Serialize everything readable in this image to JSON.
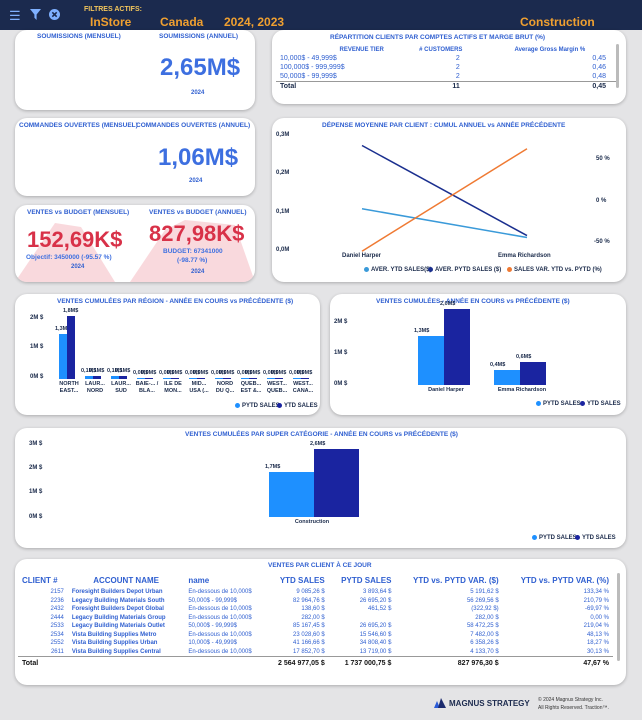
{
  "header": {
    "filters_label": "FILTRES ACTIFS:",
    "filters": [
      "InStore",
      "Canada",
      "2024, 2023",
      "Construction"
    ]
  },
  "soumissions": {
    "title_m": "SOUMISSIONS (MENSUEL)",
    "title_a": "SOUMISSIONS (ANNUEL)",
    "value": "2,65M$",
    "year": "2024"
  },
  "commandes": {
    "title_m": "COMMANDES OUVERTES (MENSUEL)",
    "title_a": "COMMANDES OUVERTES (ANNUEL)",
    "value": "1,06M$",
    "year": "2024"
  },
  "ventes_budget": {
    "title_m": "VENTES vs BUDGET (MENSUEL)",
    "title_a": "VENTES vs BUDGET (ANNUEL)",
    "value_m": "152,69K$",
    "value_a": "827,98K$",
    "objectif": "Objectif: 3450000 (-95.57 %)",
    "budget": "BUDGET: 67341000",
    "budget_pct": "(-98.77 %)",
    "year_m": "2024",
    "year_a": "2024"
  },
  "repartition": {
    "title": "RÉPARTITION CLIENTS PAR COMPTES ACTIFS ET MARGE BRUT (%)",
    "headers": [
      "REVENUE TIER",
      "# CUSTOMERS",
      "Average Gross Margin %"
    ],
    "rows": [
      [
        "10,000$ - 49,999$",
        "2",
        "0,45"
      ],
      [
        "100,000$ - 999,999$",
        "2",
        "0,46"
      ],
      [
        "50,000$ - 99,999$",
        "2",
        "0,48"
      ]
    ],
    "total": [
      "Total",
      "11",
      "0,45"
    ]
  },
  "depense": {
    "title": "DÉPENSE MOYENNE PAR CLIENT : CUMUL ANNUEL vs ANNÉE PRÉCÉDENTE",
    "y_left": [
      "0,3M",
      "0,2M",
      "0,1M",
      "0,0M"
    ],
    "y_right": [
      "50 %",
      "0 %",
      "-50 %"
    ],
    "x": [
      "Daniel Harper",
      "Emma Richardson"
    ],
    "legend": [
      "AVER. YTD SALES($)",
      "AVER. PYTD SALES ($)",
      "SALES VAR. YTD vs. PYTD (%)"
    ],
    "colors": [
      "#3a9ad9",
      "#1a2f8f",
      "#ef7a33"
    ]
  },
  "region": {
    "title": "VENTES CUMULÉES PAR RÉGION - ANNÉE EN COURS vs PRÉCÉDENTE ($)",
    "y": [
      "2M $",
      "1M $",
      "0M $"
    ],
    "legend": [
      "PYTD SALES",
      "YTD SALES"
    ]
  },
  "cumulees": {
    "title": "VENTES CUMULÉES - ANNÉE EN COURS vs PRÉCÉDENTE ($)",
    "y": [
      "2M $",
      "1M $",
      "0M $"
    ],
    "legend": [
      "PYTD SALES",
      "YTD SALES"
    ]
  },
  "categorie": {
    "title": "VENTES CUMULÉES PAR SUPER CATÉGORIE - ANNÉE EN COURS vs PRÉCÉDENTE ($)",
    "y": [
      "3M $",
      "2M $",
      "1M $",
      "0M $"
    ],
    "legend": [
      "PYTD SALES",
      "YTD SALES"
    ]
  },
  "chart_data": [
    {
      "type": "line",
      "title": "DÉPENSE MOYENNE PAR CLIENT : CUMUL ANNUEL vs ANNÉE PRÉCÉDENTE",
      "x": [
        "Daniel Harper",
        "Emma Richardson"
      ],
      "series": [
        {
          "name": "AVER. YTD SALES($)",
          "values": [
            0.105,
            0.03
          ],
          "axis": "left"
        },
        {
          "name": "AVER. PYTD SALES ($)",
          "values": [
            0.27,
            0.035
          ],
          "axis": "left"
        },
        {
          "name": "SALES VAR. YTD vs. PYTD (%)",
          "values": [
            -60,
            65
          ],
          "axis": "right"
        }
      ],
      "ylim": [
        0,
        0.3
      ]
    },
    {
      "type": "bar",
      "title": "VENTES CUMULÉES PAR RÉGION - ANNÉE EN COURS vs PRÉCÉDENTE ($)",
      "categories": [
        "NORTH EAST...",
        "LAUR... NORD",
        "LAUR... SUD",
        "BAIE-... / BLA...",
        "ILE DE MON...",
        "MID... USA (...",
        "NORD DU Q...",
        "QUEB... EST &...",
        "WEST... QUEB...",
        "WEST... CANA..."
      ],
      "series": [
        {
          "name": "PYTD SALES",
          "values": [
            1.3,
            0.1,
            0.1,
            0,
            0,
            0,
            0,
            0,
            0,
            0
          ]
        },
        {
          "name": "YTD SALES",
          "values": [
            1.8,
            0.1,
            0.1,
            0,
            0,
            0,
            0,
            0,
            0,
            0
          ]
        }
      ],
      "labels": [
        [
          "1,3M$",
          "1,8M$"
        ],
        [
          "0,1M$",
          "0,1M$"
        ],
        [
          "0,1M$",
          "0,1M$"
        ],
        [
          "0,0M$",
          "0,0M$"
        ],
        [
          "0,0M$",
          "0,0M$"
        ],
        [
          "0,0M$",
          "0,0M$"
        ],
        [
          "0,0M$",
          "0,0M$"
        ],
        [
          "0,0M$",
          "0,0M$"
        ],
        [
          "0,0M$",
          "0,0M$"
        ],
        [
          "0,0M$",
          "0,0M$"
        ]
      ],
      "ylim": [
        0,
        2
      ]
    },
    {
      "type": "bar",
      "title": "VENTES CUMULÉES - ANNÉE EN COURS vs PRÉCÉDENTE ($)",
      "categories": [
        "Daniel Harper",
        "Emma Richardson"
      ],
      "series": [
        {
          "name": "PYTD SALES",
          "values": [
            1.3,
            0.4
          ]
        },
        {
          "name": "YTD SALES",
          "values": [
            2.0,
            0.6
          ]
        }
      ],
      "labels": [
        [
          "1,3M$",
          "2,0M$"
        ],
        [
          "0,4M$",
          "0,6M$"
        ]
      ],
      "ylim": [
        0,
        2
      ]
    },
    {
      "type": "bar",
      "title": "VENTES CUMULÉES PAR SUPER CATÉGORIE - ANNÉE EN COURS vs PRÉCÉDENTE ($)",
      "categories": [
        "Construction"
      ],
      "series": [
        {
          "name": "PYTD SALES",
          "values": [
            1.7
          ]
        },
        {
          "name": "YTD SALES",
          "values": [
            2.6
          ]
        }
      ],
      "labels": [
        [
          "1,7M$",
          "2,6M$"
        ]
      ],
      "ylim": [
        0,
        3
      ]
    }
  ],
  "clients": {
    "title": "VENTES PAR CLIENT À CE JOUR",
    "headers": [
      "CLIENT #",
      "ACCOUNT NAME",
      "name",
      "YTD SALES",
      "PYTD SALES",
      "YTD vs. PYTD VAR. ($)",
      "YTD vs. PYTD VAR. (%)"
    ],
    "rows": [
      [
        "2157",
        "Foresight Builders Depot Urban",
        "En-dessous de 10,000$",
        "9 085,26 $",
        "3 893,64 $",
        "5 191,62 $",
        "133,34 %"
      ],
      [
        "2236",
        "Legacy Building Materials South",
        "50,000$ - 99,999$",
        "82 964,76 $",
        "26 695,20 $",
        "56 269,56 $",
        "210,79 %"
      ],
      [
        "2432",
        "Foresight Builders Depot Global",
        "En-dessous de 10,000$",
        "138,60 $",
        "461,52 $",
        "(322,92 $)",
        "-69,97 %"
      ],
      [
        "2444",
        "Legacy Building Materials Group",
        "En-dessous de 10,000$",
        "282,00 $",
        "",
        "282,00 $",
        "0,00 %"
      ],
      [
        "2533",
        "Legacy Building Materials Outlet",
        "50,000$ - 99,999$",
        "85 167,45 $",
        "26 695,20 $",
        "58 472,25 $",
        "219,04 %"
      ],
      [
        "2534",
        "Vista Building Supplies Metro",
        "En-dessous de 10,000$",
        "23 028,60 $",
        "15 546,60 $",
        "7 482,00 $",
        "48,13 %"
      ],
      [
        "2552",
        "Vista Building Supplies Urban",
        "10,000$ - 49,999$",
        "41 166,66 $",
        "34 808,40 $",
        "6 358,26 $",
        "18,27 %"
      ],
      [
        "2611",
        "Vista Building Supplies Central",
        "En-dessous de 10,000$",
        "17 852,70 $",
        "13 719,00 $",
        "4 133,70 $",
        "30,13 %"
      ]
    ],
    "total": [
      "Total",
      "",
      "",
      "2 564 977,05 $",
      "1 737 000,75 $",
      "827 976,30 $",
      "47,67 %"
    ]
  },
  "footer": {
    "brand": "MAGNUS STRATEGY",
    "copyright": "© 2024 Magnus Strategy Inc.",
    "rights": "All Rights Reserved. Traction™."
  }
}
